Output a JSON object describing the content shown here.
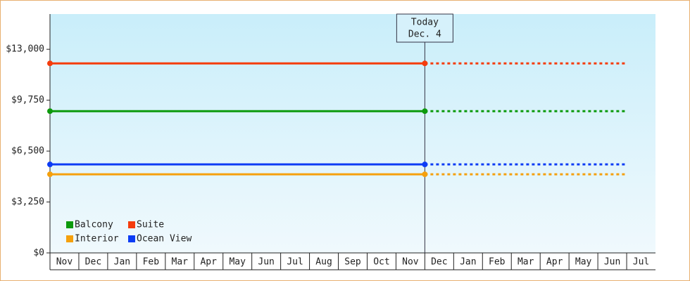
{
  "chart_data": {
    "type": "line",
    "categories": [
      "Nov",
      "Dec",
      "Jan",
      "Feb",
      "Mar",
      "Apr",
      "May",
      "Jun",
      "Jul",
      "Aug",
      "Sep",
      "Oct",
      "Nov",
      "Dec",
      "Jan",
      "Feb",
      "Mar",
      "Apr",
      "May",
      "Jun",
      "Jul"
    ],
    "series": [
      {
        "name": "Balcony",
        "color": "#0c9a0c",
        "values": [
          9050,
          9050,
          9050,
          9050,
          9050,
          9050,
          9050,
          9050,
          9050,
          9050,
          9050,
          9050,
          9050,
          9050,
          9050,
          9050,
          9050,
          9050,
          9050,
          9050,
          9050
        ]
      },
      {
        "name": "Suite",
        "color": "#f53c0c",
        "values": [
          12100,
          12100,
          12100,
          12100,
          12100,
          12100,
          12100,
          12100,
          12100,
          12100,
          12100,
          12100,
          12100,
          12100,
          12100,
          12100,
          12100,
          12100,
          12100,
          12100,
          12100
        ]
      },
      {
        "name": "Interior",
        "color": "#f5a00c",
        "values": [
          5020,
          5020,
          5020,
          5020,
          5020,
          5020,
          5020,
          5020,
          5020,
          5020,
          5020,
          5020,
          5020,
          5020,
          5020,
          5020,
          5020,
          5020,
          5020,
          5020,
          5020
        ]
      },
      {
        "name": "Ocean View",
        "color": "#0c3cf5",
        "values": [
          5650,
          5650,
          5650,
          5650,
          5650,
          5650,
          5650,
          5650,
          5650,
          5650,
          5650,
          5650,
          5650,
          5650,
          5650,
          5650,
          5650,
          5650,
          5650,
          5650,
          5650
        ]
      }
    ],
    "ylim": [
      0,
      15250
    ],
    "yticks": [
      {
        "value": 0,
        "label": "$0"
      },
      {
        "value": 3250,
        "label": "$3,250"
      },
      {
        "value": 6500,
        "label": "$6,500"
      },
      {
        "value": 9750,
        "label": "$9,750"
      },
      {
        "value": 13000,
        "label": "$13,000"
      }
    ],
    "annotation": {
      "text": "Today",
      "date": "Dec. 4"
    },
    "legend": "lower left"
  }
}
